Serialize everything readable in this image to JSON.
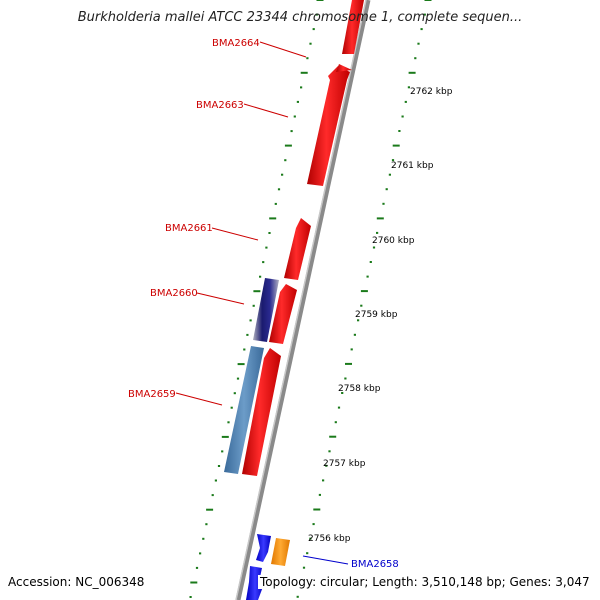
{
  "title": "Burkholderia mallei ATCC 23344 chromosome 1, complete sequen...",
  "footer": {
    "accession": "Accession: NC_006348",
    "summary": "Topology: circular; Length: 3,510,148 bp; Genes: 3,047"
  },
  "colors": {
    "forward_gene": "#ff0000",
    "reverse_gene_light": "#4f7fb0",
    "reverse_gene_dark": "#1a1a6e",
    "reverse_gene_blue": "#0000ff",
    "orange_gene": "#ff8c00",
    "backbone": "#808080",
    "tick": "#1a7a1a",
    "label_red": "#cc0000",
    "label_blue": "#0000cc"
  },
  "kbp_ticks": [
    "2762 kbp",
    "2761 kbp",
    "2760 kbp",
    "2759 kbp",
    "2758 kbp",
    "2757 kbp",
    "2756 kbp"
  ],
  "gene_labels": [
    {
      "name": "BMA2664",
      "color": "red"
    },
    {
      "name": "BMA2663",
      "color": "red"
    },
    {
      "name": "BMA2661",
      "color": "red"
    },
    {
      "name": "BMA2660",
      "color": "red"
    },
    {
      "name": "BMA2659",
      "color": "red"
    },
    {
      "name": "BMA2658",
      "color": "blue"
    }
  ]
}
